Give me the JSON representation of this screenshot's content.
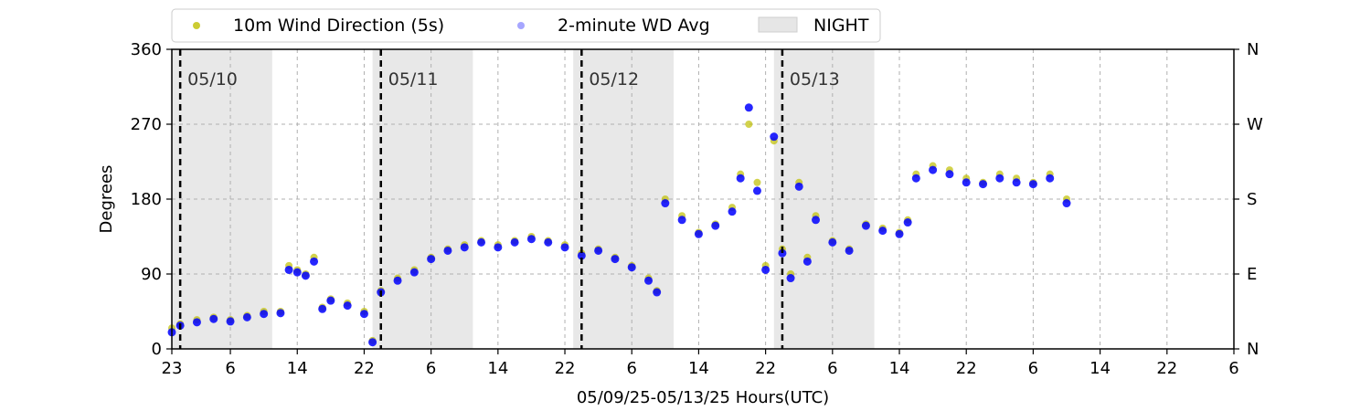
{
  "chart_data": {
    "type": "scatter",
    "title": "",
    "xlabel": "05/09/25-05/13/25  Hours(UTC)",
    "ylabel": "Degrees",
    "x_unit": "hours since 05/09 23:00 UTC",
    "xlim": [
      0,
      127
    ],
    "ylim": [
      0,
      360
    ],
    "x_ticks": [
      {
        "x": 0,
        "label": "23"
      },
      {
        "x": 7,
        "label": "6"
      },
      {
        "x": 15,
        "label": "14"
      },
      {
        "x": 23,
        "label": "22"
      },
      {
        "x": 31,
        "label": "6"
      },
      {
        "x": 39,
        "label": "14"
      },
      {
        "x": 47,
        "label": "22"
      },
      {
        "x": 55,
        "label": "6"
      },
      {
        "x": 63,
        "label": "14"
      },
      {
        "x": 71,
        "label": "22"
      },
      {
        "x": 79,
        "label": "6"
      },
      {
        "x": 87,
        "label": "14"
      },
      {
        "x": 95,
        "label": "22"
      },
      {
        "x": 103,
        "label": "6"
      },
      {
        "x": 111,
        "label": "14"
      },
      {
        "x": 119,
        "label": "22"
      },
      {
        "x": 127,
        "label": "6"
      }
    ],
    "y_ticks": [
      0,
      90,
      180,
      270,
      360
    ],
    "right_ticks": [
      {
        "y": 0,
        "label": "N"
      },
      {
        "y": 90,
        "label": "E"
      },
      {
        "y": 180,
        "label": "S"
      },
      {
        "y": 270,
        "label": "W"
      },
      {
        "y": 360,
        "label": "N"
      }
    ],
    "grid": true,
    "legend": {
      "placement": "top-left-outside",
      "entries": [
        {
          "name": "10m Wind Direction (5s)",
          "color": "#bfbf00",
          "kind": "point"
        },
        {
          "name": "2-minute WD Avg",
          "color": "#0000ff",
          "kind": "point"
        },
        {
          "name": "NIGHT",
          "color": "#e6e6e6",
          "kind": "band"
        }
      ]
    },
    "night_periods": [
      [
        0,
        12
      ],
      [
        24,
        36
      ],
      [
        48,
        60
      ],
      [
        72,
        84
      ]
    ],
    "day_markers": [
      {
        "x": 1,
        "label": "05/10"
      },
      {
        "x": 25,
        "label": "05/11"
      },
      {
        "x": 49,
        "label": "05/12"
      },
      {
        "x": 73,
        "label": "05/13"
      }
    ],
    "series": [
      {
        "name": "10m Wind Direction (5s)",
        "color": "#bfbf00",
        "x": [
          0,
          1,
          3,
          5,
          7,
          9,
          11,
          13,
          14,
          15,
          16,
          17,
          18,
          19,
          21,
          23,
          24,
          25,
          27,
          29,
          31,
          33,
          35,
          37,
          39,
          41,
          43,
          45,
          47,
          49,
          51,
          53,
          55,
          57,
          58,
          59,
          61,
          63,
          65,
          67,
          68,
          69,
          70,
          71,
          72,
          73,
          74,
          75,
          76,
          77,
          79,
          81,
          83,
          85,
          87,
          88,
          89,
          91,
          93,
          95,
          97,
          99,
          101,
          103,
          105,
          107
        ],
        "y": [
          25,
          30,
          35,
          38,
          35,
          40,
          45,
          45,
          100,
          95,
          90,
          110,
          50,
          60,
          55,
          45,
          10,
          70,
          85,
          95,
          110,
          120,
          125,
          130,
          125,
          130,
          135,
          130,
          125,
          115,
          120,
          110,
          100,
          85,
          70,
          180,
          160,
          140,
          150,
          170,
          210,
          270,
          200,
          100,
          250,
          120,
          90,
          200,
          110,
          160,
          130,
          120,
          150,
          145,
          140,
          155,
          210,
          220,
          215,
          205,
          200,
          210,
          205,
          200,
          210,
          180
        ]
      },
      {
        "name": "2-minute WD Avg",
        "color": "#0000ff",
        "x": [
          0,
          1,
          3,
          5,
          7,
          9,
          11,
          13,
          14,
          15,
          16,
          17,
          18,
          19,
          21,
          23,
          24,
          25,
          27,
          29,
          31,
          33,
          35,
          37,
          39,
          41,
          43,
          45,
          47,
          49,
          51,
          53,
          55,
          57,
          58,
          59,
          61,
          63,
          65,
          67,
          68,
          69,
          70,
          71,
          72,
          73,
          74,
          75,
          76,
          77,
          79,
          81,
          83,
          85,
          87,
          88,
          89,
          91,
          93,
          95,
          97,
          99,
          101,
          103,
          105,
          107
        ],
        "y": [
          20,
          28,
          32,
          36,
          33,
          38,
          42,
          43,
          95,
          92,
          88,
          105,
          48,
          58,
          52,
          42,
          8,
          68,
          82,
          92,
          108,
          118,
          122,
          128,
          122,
          128,
          132,
          128,
          122,
          112,
          118,
          108,
          98,
          82,
          68,
          175,
          155,
          138,
          148,
          165,
          205,
          290,
          190,
          95,
          255,
          115,
          85,
          195,
          105,
          155,
          128,
          118,
          148,
          142,
          138,
          152,
          205,
          215,
          210,
          200,
          198,
          205,
          200,
          198,
          205,
          175
        ]
      }
    ]
  }
}
